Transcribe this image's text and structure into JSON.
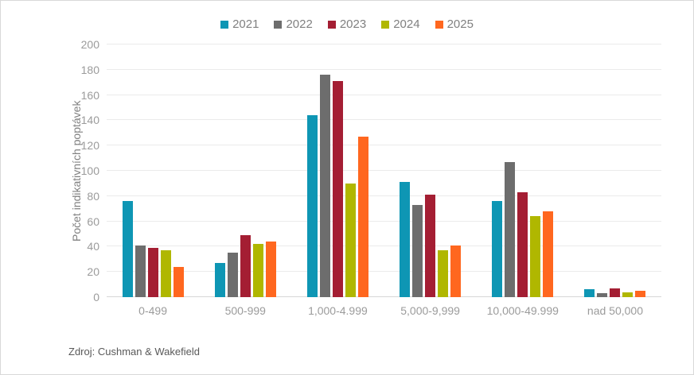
{
  "chart_data": {
    "type": "bar",
    "title": "",
    "categories": [
      "0-499",
      "500-999",
      "1,000-4.999",
      "5,000-9,999",
      "10,000-49.999",
      "nad 50,000"
    ],
    "series": [
      {
        "name": "2021",
        "color": "#0E96B4",
        "values": [
          76,
          27,
          144,
          91,
          76,
          6
        ]
      },
      {
        "name": "2022",
        "color": "#6D6D6D",
        "values": [
          41,
          35,
          176,
          73,
          107,
          3
        ]
      },
      {
        "name": "2023",
        "color": "#A41E33",
        "values": [
          39,
          49,
          171,
          81,
          83,
          7
        ]
      },
      {
        "name": "2024",
        "color": "#B0B700",
        "values": [
          37,
          42,
          90,
          37,
          64,
          4
        ]
      },
      {
        "name": "2025",
        "color": "#FF671F",
        "values": [
          24,
          44,
          127,
          41,
          68,
          5
        ]
      }
    ],
    "xlabel": "",
    "ylabel": "Počet indikativních poptávek",
    "ylim": [
      0,
      200
    ],
    "ytick_step": 20,
    "grid": true,
    "legend_position": "top"
  },
  "source": {
    "label": "Zdroj: Cushman & Wakefield"
  },
  "style": {
    "grid_color": "#EBEBEB",
    "axis_color": "#D6D6D6",
    "tick_text_color": "#9B9B9B",
    "category_text_color": "#9B9B9B",
    "legend_text_color": "#808080",
    "ylabel_color": "#808080",
    "source_text_color": "#595959",
    "background": "#FFFFFF"
  }
}
